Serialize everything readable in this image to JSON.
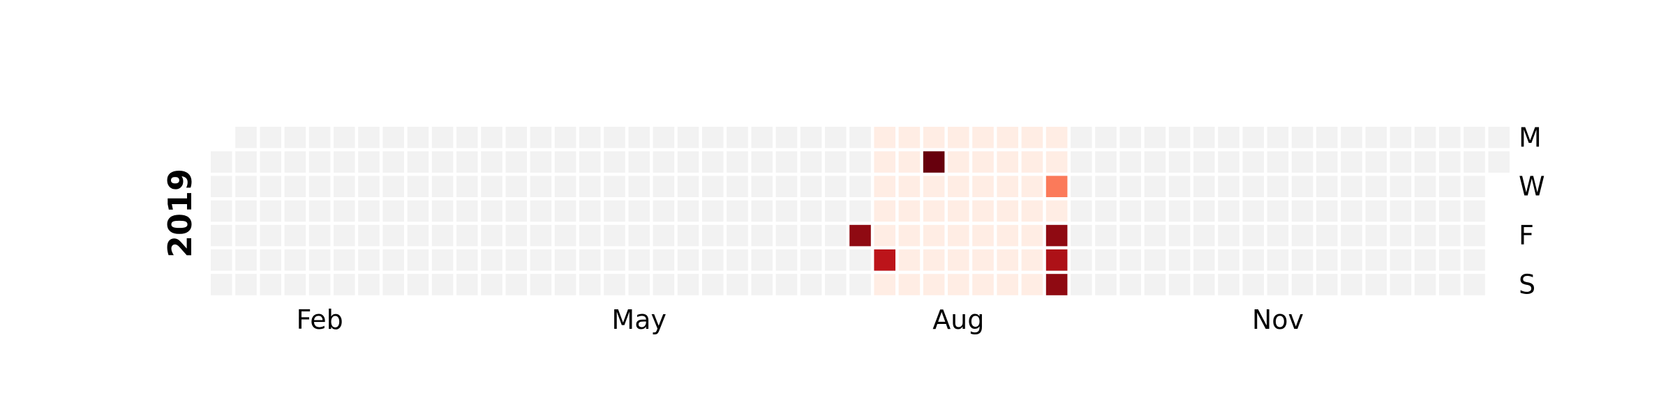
{
  "chart_data": {
    "type": "heatmap",
    "title": "",
    "year": "2019",
    "start_date": "2019-01-01",
    "end_date": "2019-12-31",
    "month_labels": [
      "Feb",
      "May",
      "Aug",
      "Nov"
    ],
    "month_label_dates": [
      "2019-02-01",
      "2019-05-01",
      "2019-08-01",
      "2019-11-01"
    ],
    "day_labels": [
      "M",
      "W",
      "F",
      "S"
    ],
    "day_label_rows": [
      0,
      2,
      4,
      6
    ],
    "colormap": "Reds",
    "empty_color": "#f2f2f2",
    "default_active_value": 0.05,
    "active_range": [
      "2019-07-08",
      "2019-08-31"
    ],
    "highlighted_days": [
      {
        "date": "2019-07-05",
        "value": 0.92
      },
      {
        "date": "2019-07-13",
        "value": 0.8
      },
      {
        "date": "2019-07-23",
        "value": 1.0
      },
      {
        "date": "2019-08-28",
        "value": 0.45
      },
      {
        "date": "2019-08-30",
        "value": 0.92
      },
      {
        "date": "2019-08-31",
        "value": 0.85
      },
      {
        "date": "2019-09-01",
        "value": 0.92
      }
    ],
    "legend": "none",
    "grid": false
  }
}
